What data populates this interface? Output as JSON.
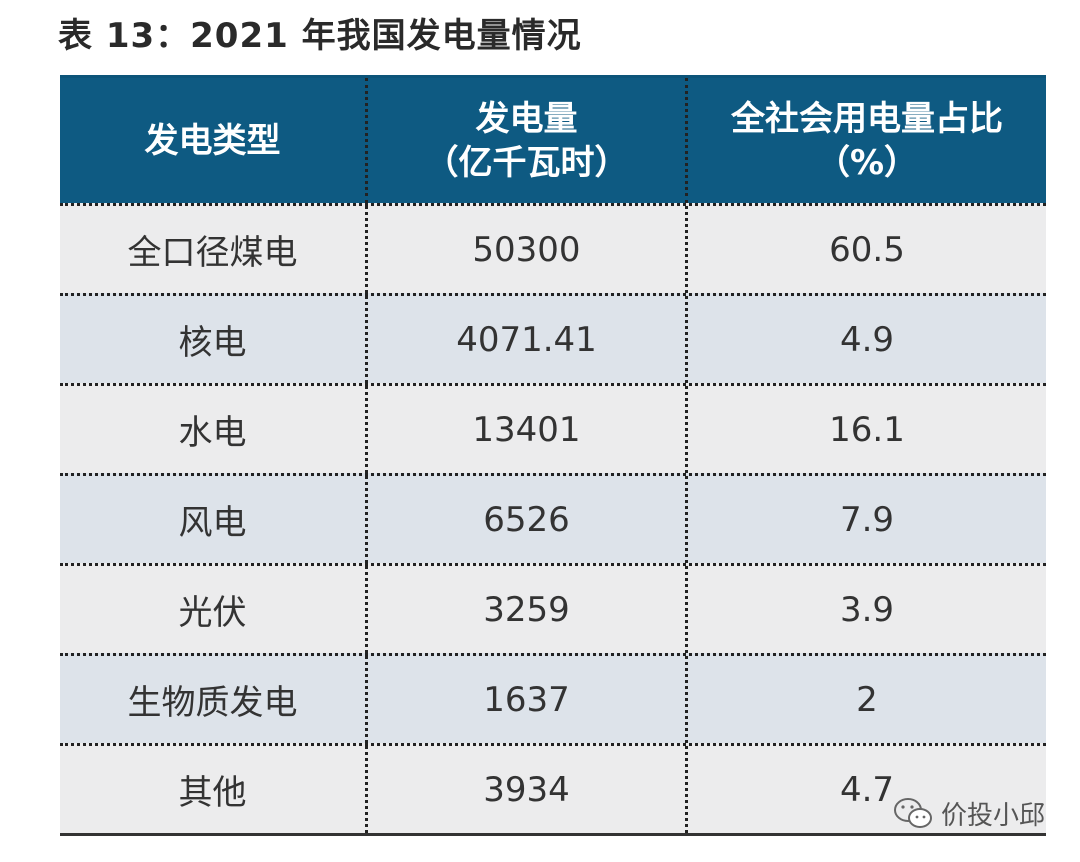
{
  "title": "表 13：2021 年我国发电量情况",
  "table": {
    "header": [
      [
        "发电类型"
      ],
      [
        "发电量",
        "（亿千瓦时）"
      ],
      [
        "全社会用电量占比",
        "（%）"
      ]
    ],
    "rows": [
      [
        "全口径煤电",
        "50300",
        "60.5"
      ],
      [
        "核电",
        "4071.41",
        "4.9"
      ],
      [
        "水电",
        "13401",
        "16.1"
      ],
      [
        "风电",
        "6526",
        "7.9"
      ],
      [
        "光伏",
        "3259",
        "3.9"
      ],
      [
        "生物质发电",
        "1637",
        "2"
      ],
      [
        "其他",
        "3934",
        "4.7"
      ]
    ]
  },
  "watermark": "价投小邱"
}
